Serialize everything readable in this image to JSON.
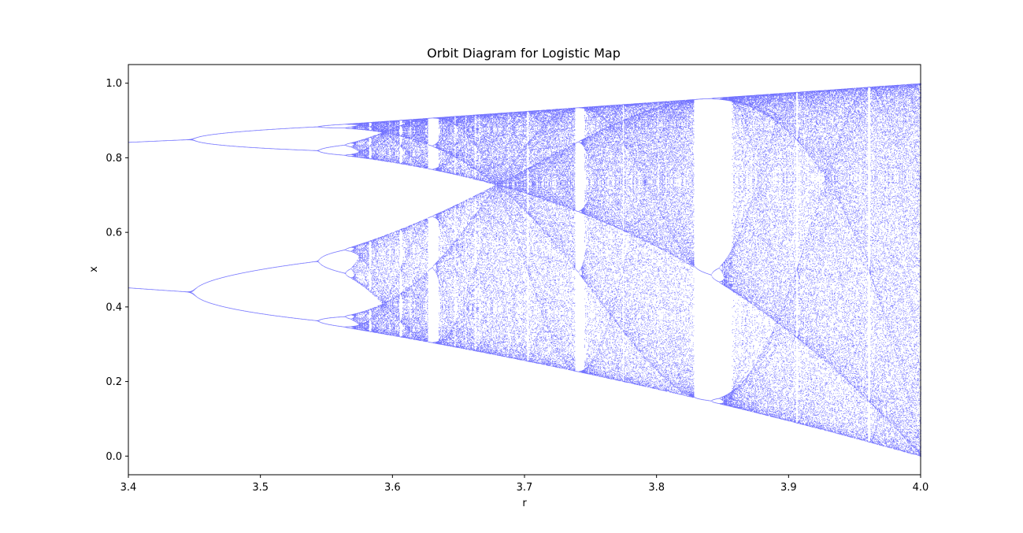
{
  "chart_data": {
    "type": "scatter",
    "title": "Orbit Diagram for Logistic Map",
    "xlabel": "r",
    "ylabel": "x",
    "xlim": [
      3.4,
      4.0
    ],
    "ylim": [
      -0.05,
      1.05
    ],
    "x_ticks": [
      3.4,
      3.5,
      3.6,
      3.7,
      3.8,
      3.9,
      4.0
    ],
    "x_tick_labels": [
      "3.4",
      "3.5",
      "3.6",
      "3.7",
      "3.8",
      "3.9",
      "4.0"
    ],
    "y_ticks": [
      0.0,
      0.2,
      0.4,
      0.6,
      0.8,
      1.0
    ],
    "y_tick_labels": [
      "0.0",
      "0.2",
      "0.4",
      "0.6",
      "0.8",
      "1.0"
    ],
    "grid": false,
    "legend": "none",
    "series": [
      {
        "map": "x[n+1] = r * x[n] * (1 - x[n])",
        "r_range": [
          3.4,
          4.0
        ],
        "color": "#0000ff"
      }
    ]
  }
}
